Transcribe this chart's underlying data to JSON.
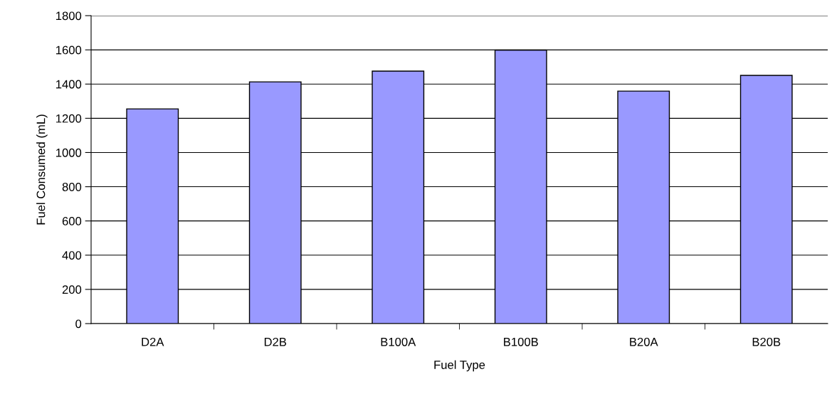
{
  "chart_data": {
    "type": "bar",
    "xlabel": "Fuel Type",
    "ylabel": "Fuel Consumed (mL)",
    "categories": [
      "D2A",
      "D2B",
      "B100A",
      "B100B",
      "B20A",
      "B20B"
    ],
    "values": [
      1255,
      1413,
      1476,
      1598,
      1359,
      1451
    ],
    "color": "#9999ff",
    "ylim": [
      0,
      1800
    ],
    "yticks": [
      0,
      200,
      400,
      600,
      800,
      1000,
      1200,
      1400,
      1600,
      1800
    ],
    "grid": "y"
  }
}
